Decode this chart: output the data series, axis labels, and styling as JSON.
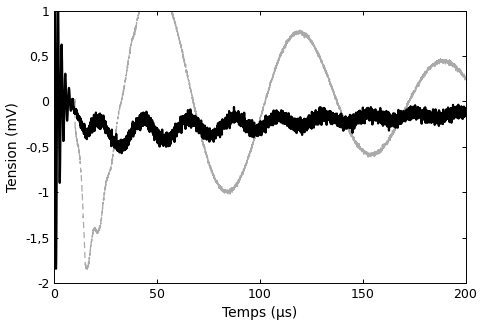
{
  "xlim": [
    0,
    200
  ],
  "ylim": [
    -2,
    1
  ],
  "xlabel": "Temps (µs)",
  "ylabel": "Tension (mV)",
  "xticks": [
    0,
    50,
    100,
    150,
    200
  ],
  "yticks": [
    -2,
    -1.5,
    -1,
    -0.5,
    0,
    0.5,
    1
  ],
  "ytick_labels": [
    "-2",
    "-1,5",
    "-1",
    "-0,5",
    "0",
    "0,5",
    "1"
  ],
  "background_color": "#ffffff",
  "solid_color": "#000000",
  "dashed_color": "#aaaaaa",
  "solid_linewidth": 1.6,
  "dashed_linewidth": 0.9,
  "figsize": [
    4.83,
    3.26
  ],
  "dpi": 100
}
